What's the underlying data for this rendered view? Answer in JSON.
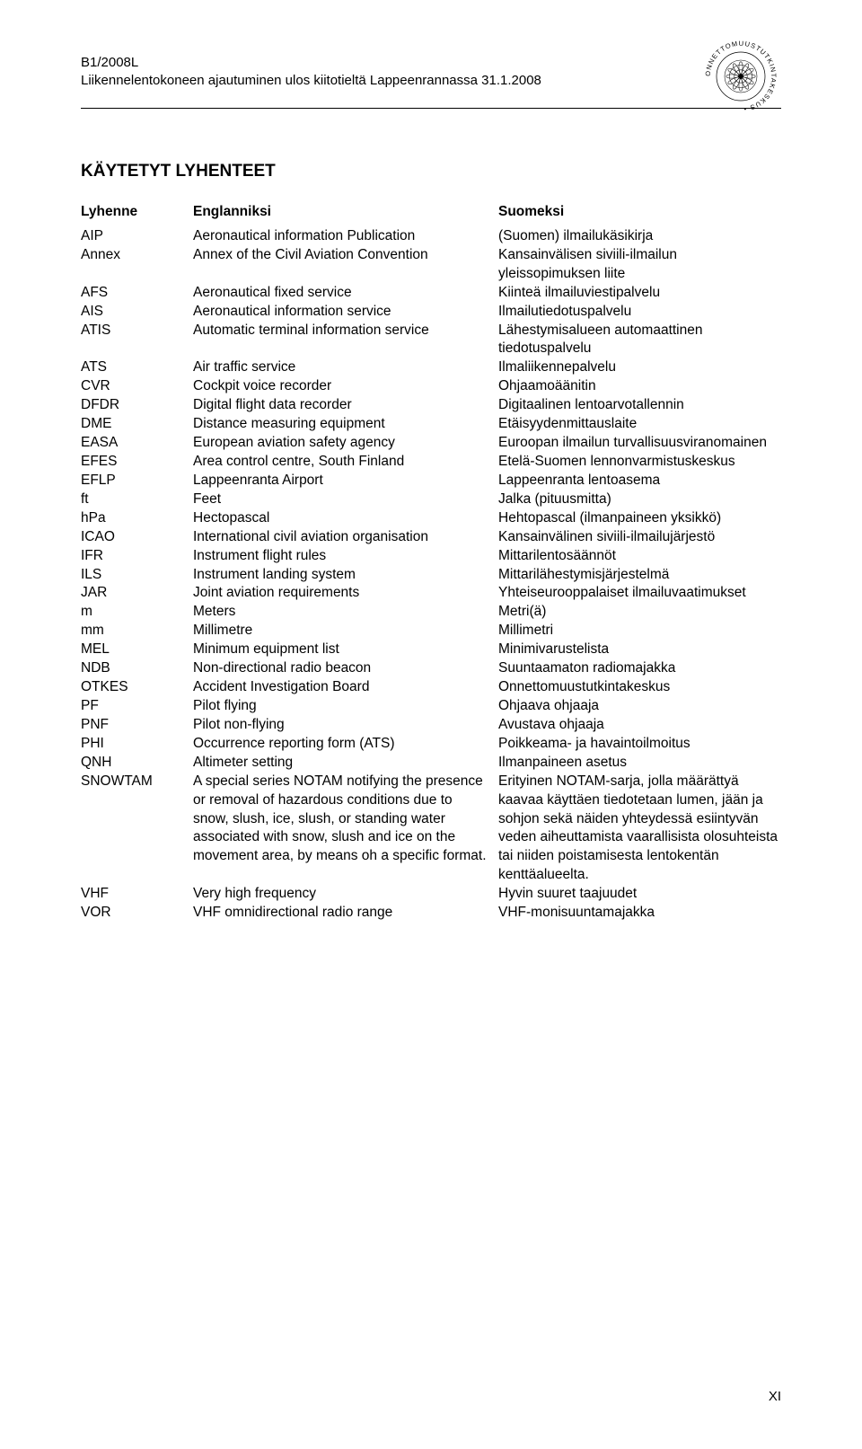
{
  "document": {
    "code": "B1/2008L",
    "subtitle": "Liikennelentokoneen ajautuminen ulos kiitotieltä Lappeenrannassa 31.1.2008",
    "page_number": "XI",
    "title": "KÄYTETYT LYHENTEET",
    "headers": {
      "abbr": "Lyhenne",
      "en": "Englanniksi",
      "fi": "Suomeksi"
    },
    "rows": [
      {
        "abbr": "AIP",
        "en": "Aeronautical information Publication",
        "fi": "(Suomen) ilmailukäsikirja"
      },
      {
        "abbr": "Annex",
        "en": "Annex of the Civil Aviation Convention",
        "fi": "Kansainvälisen siviili-ilmailun yleissopimuksen liite"
      },
      {
        "abbr": "AFS",
        "en": "Aeronautical fixed service",
        "fi": "Kiinteä ilmailuviestipalvelu"
      },
      {
        "abbr": "AIS",
        "en": "Aeronautical information service",
        "fi": "Ilmailutiedotuspalvelu"
      },
      {
        "abbr": "ATIS",
        "en": "Automatic terminal information service",
        "fi": "Lähestymisalueen automaattinen tiedotuspalvelu"
      },
      {
        "abbr": "ATS",
        "en": "Air traffic service",
        "fi": "Ilmaliikennepalvelu"
      },
      {
        "abbr": "CVR",
        "en": "Cockpit voice recorder",
        "fi": "Ohjaamoäänitin"
      },
      {
        "abbr": "DFDR",
        "en": "Digital flight data recorder",
        "fi": "Digitaalinen lentoarvotallennin"
      },
      {
        "abbr": "DME",
        "en": "Distance measuring equipment",
        "fi": "Etäisyydenmittauslaite"
      },
      {
        "abbr": "EASA",
        "en": "European aviation safety agency",
        "fi": "Euroopan ilmailun turvallisuusviranomainen"
      },
      {
        "abbr": "EFES",
        "en": "Area control centre, South Finland",
        "fi": "Etelä-Suomen lennonvarmistuskeskus"
      },
      {
        "abbr": "EFLP",
        "en": "Lappeenranta Airport",
        "fi": "Lappeenranta lentoasema"
      },
      {
        "abbr": "ft",
        "en": "Feet",
        "fi": "Jalka (pituusmitta)"
      },
      {
        "abbr": "hPa",
        "en": "Hectopascal",
        "fi": "Hehtopascal (ilmanpaineen yksikkö)"
      },
      {
        "abbr": "ICAO",
        "en": "International civil aviation organisation",
        "fi": "Kansainvälinen siviili-ilmailujärjestö"
      },
      {
        "abbr": "IFR",
        "en": "Instrument flight rules",
        "fi": "Mittarilentosäännöt"
      },
      {
        "abbr": "ILS",
        "en": "Instrument landing system",
        "fi": "Mittarilähestymisjärjestelmä"
      },
      {
        "abbr": "JAR",
        "en": "Joint aviation requirements",
        "fi": "Yhteiseurooppalaiset ilmailuvaatimukset"
      },
      {
        "abbr": "m",
        "en": "Meters",
        "fi": "Metri(ä)"
      },
      {
        "abbr": "mm",
        "en": "Millimetre",
        "fi": "Millimetri"
      },
      {
        "abbr": "MEL",
        "en": "Minimum equipment list",
        "fi": "Minimivarustelista"
      },
      {
        "abbr": "NDB",
        "en": "Non-directional radio beacon",
        "fi": "Suuntaamaton radiomajakka"
      },
      {
        "abbr": "OTKES",
        "en": "Accident Investigation Board",
        "fi": "Onnettomuustutkintakeskus"
      },
      {
        "abbr": "PF",
        "en": "Pilot flying",
        "fi": "Ohjaava ohjaaja"
      },
      {
        "abbr": "PNF",
        "en": "Pilot non-flying",
        "fi": "Avustava ohjaaja"
      },
      {
        "abbr": "PHI",
        "en": "Occurrence reporting form (ATS)",
        "fi": "Poikkeama- ja havaintoilmoitus"
      },
      {
        "abbr": "QNH",
        "en": "Altimeter setting",
        "fi": "Ilmanpaineen asetus"
      },
      {
        "abbr": "SNOWTAM",
        "en": "A special series NOTAM notifying the presence or removal of hazardous conditions due to snow, slush, ice, slush, or standing water associated with snow, slush and ice on the movement area, by means oh a specific format.",
        "fi": "Erityinen NOTAM-sarja, jolla määrättyä kaavaa käyttäen tiedotetaan lumen, jään ja sohjon sekä näiden yhteydessä esiintyvän veden aiheuttamista vaarallisista olosuhteista tai niiden poistamisesta lentokentän kenttäalueelta."
      },
      {
        "abbr": "VHF",
        "en": "Very high frequency",
        "fi": "Hyvin suuret taajuudet"
      },
      {
        "abbr": "VOR",
        "en": "VHF omnidirectional radio range",
        "fi": "VHF-monisuuntamajakka"
      }
    ],
    "logo": {
      "outer_text": "ONNETTOMUUSTUTKINTAKESKUS",
      "stroke_color": "#000000",
      "fill_color": "#ffffff"
    }
  }
}
